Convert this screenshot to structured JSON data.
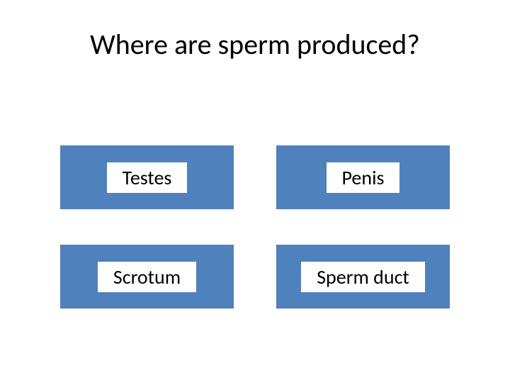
{
  "question": {
    "title": "Where are sperm produced?",
    "title_fontsize": 40,
    "title_color": "#000000"
  },
  "options": [
    {
      "label": "Testes"
    },
    {
      "label": "Penis"
    },
    {
      "label": "Scrotum"
    },
    {
      "label": "Sperm duct"
    }
  ],
  "styling": {
    "button_color": "#4f81bd",
    "label_background": "#ffffff",
    "label_text_color": "#000000",
    "label_fontsize": 28,
    "background_color": "#ffffff",
    "button_height": 90,
    "grid_column_gap": 60,
    "grid_row_gap": 50
  }
}
